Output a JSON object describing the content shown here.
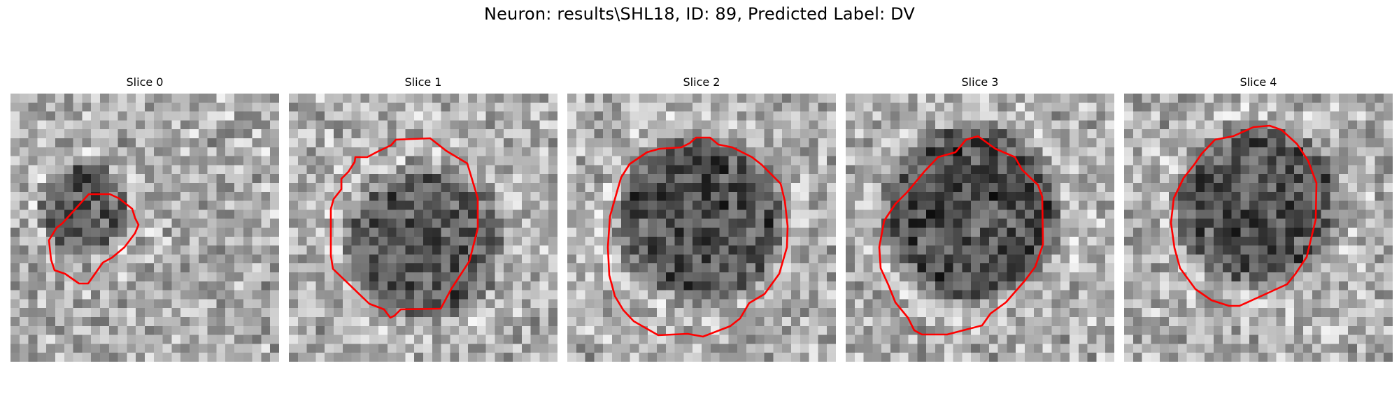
{
  "figure": {
    "title": "Neuron: results\\SHL18, ID: 89, Predicted Label: DV"
  },
  "panels": [
    {
      "title": "Slice 0",
      "contour_color": "#ff0000",
      "colormap": "gray"
    },
    {
      "title": "Slice 1",
      "contour_color": "#ff0000",
      "colormap": "gray"
    },
    {
      "title": "Slice 2",
      "contour_color": "#ff0000",
      "colormap": "gray"
    },
    {
      "title": "Slice 3",
      "contour_color": "#ff0000",
      "colormap": "gray"
    },
    {
      "title": "Slice 4",
      "contour_color": "#ff0000",
      "colormap": "gray"
    }
  ]
}
